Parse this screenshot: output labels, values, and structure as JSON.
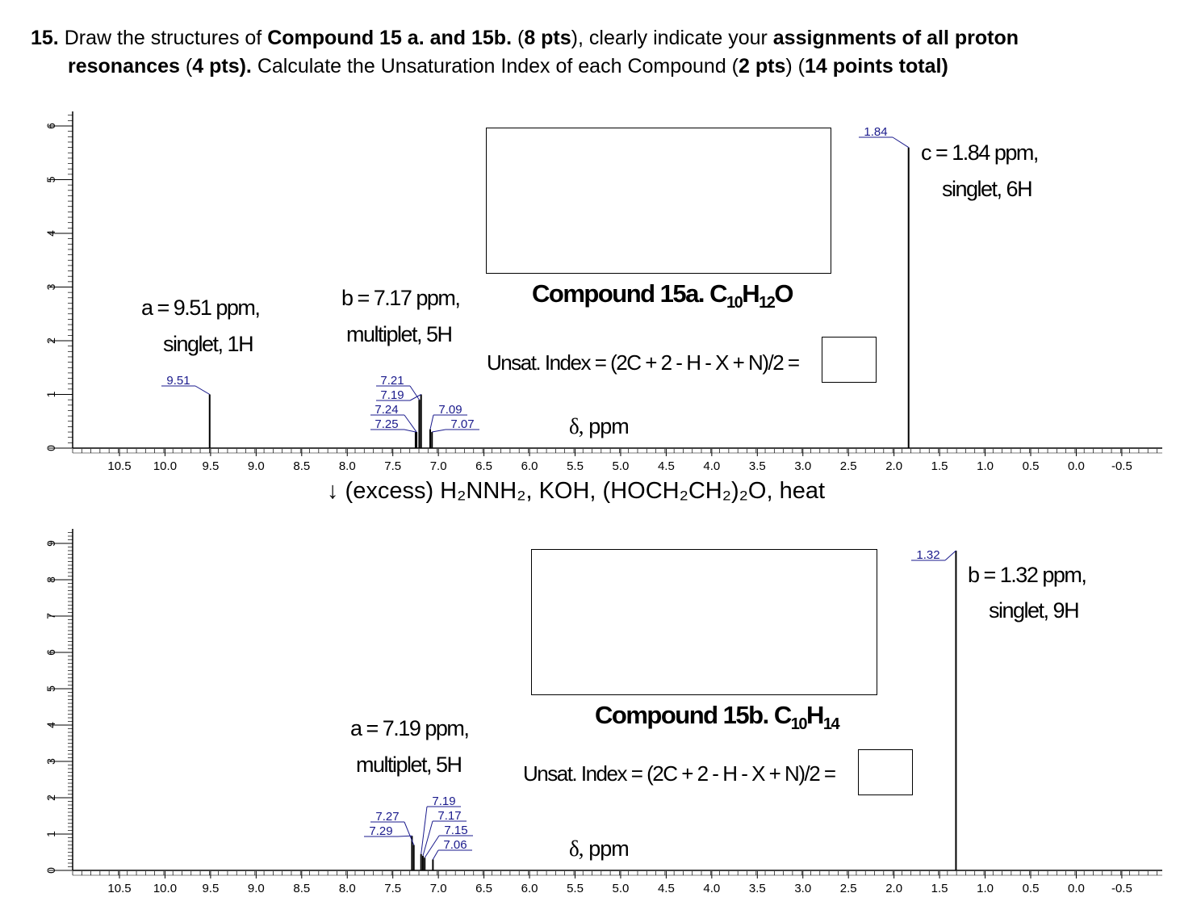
{
  "question": {
    "number": "15.",
    "segments": [
      {
        "t": " Draw the structures of ",
        "b": false
      },
      {
        "t": "Compound 15 a. and 15b.",
        "b": true
      },
      {
        "t": " (",
        "b": false
      },
      {
        "t": "8 pts",
        "b": true
      },
      {
        "t": "), clearly indicate your ",
        "b": false
      },
      {
        "t": "assignments of all proton",
        "b": true
      }
    ],
    "line2": [
      {
        "t": "resonances",
        "b": true
      },
      {
        "t": " (",
        "b": false
      },
      {
        "t": "4 pts).",
        "b": true
      },
      {
        "t": " Calculate the Unsaturation Index of each Compound (",
        "b": false
      },
      {
        "t": "2 pts",
        "b": true
      },
      {
        "t": ") (",
        "b": false
      },
      {
        "t": "14 points total)",
        "b": true
      }
    ]
  },
  "reagents": "↓ (excess) H₂NNH₂, KOH, (HOCH₂CH₂)₂O, heat",
  "unsat_formula": "Unsat. Index = (2C + 2 - H - X + N)/2 =",
  "x_axis_label_symbol": "δ,",
  "x_axis_label_unit": "ppm",
  "x_ticks": [
    "10.5",
    "10.0",
    "9.5",
    "9.0",
    "8.5",
    "8.0",
    "7.5",
    "7.0",
    "6.5",
    "6.0",
    "5.5",
    "5.0",
    "4.5",
    "4.0",
    "3.5",
    "3.0",
    "2.5",
    "2.0",
    "1.5",
    "1.0",
    "0.5",
    "0.0",
    "-0.5"
  ],
  "compound_a": {
    "name": "Compound 15a. ",
    "formula": [
      {
        "t": "C"
      },
      {
        "t": "10",
        "sub": true
      },
      {
        "t": "H"
      },
      {
        "t": "12",
        "sub": true
      },
      {
        "t": "O"
      }
    ],
    "assignments": [
      {
        "line1": "a = 9.51 ppm,",
        "line2": "singlet, 1H"
      },
      {
        "line1": "b = 7.17 ppm,",
        "line2": "multiplet, 5H"
      },
      {
        "line1": "c = 1.84 ppm,",
        "line2": "singlet, 6H"
      }
    ]
  },
  "compound_b": {
    "name": "Compound 15b. ",
    "formula": [
      {
        "t": "C"
      },
      {
        "t": "10",
        "sub": true
      },
      {
        "t": "H"
      },
      {
        "t": "14",
        "sub": true
      }
    ],
    "assignments": [
      {
        "line1": "a = 7.19 ppm,",
        "line2": "multiplet, 5H"
      },
      {
        "line1": "b = 1.32 ppm,",
        "line2": "singlet, 9H"
      }
    ]
  },
  "chart_data": [
    {
      "type": "line",
      "xlabel": "δ, ppm",
      "xlim": [
        10.5,
        -0.5
      ],
      "ylim": [
        0,
        6
      ],
      "y_ticks": [
        "0",
        "1",
        "2",
        "3",
        "4",
        "5",
        "6"
      ],
      "x_reversed": true,
      "peaks": [
        {
          "x": 9.51,
          "y": 1.0
        },
        {
          "x": 7.25,
          "y": 0.3
        },
        {
          "x": 7.24,
          "y": 0.3
        },
        {
          "x": 7.21,
          "y": 0.9
        },
        {
          "x": 7.19,
          "y": 1.0
        },
        {
          "x": 7.09,
          "y": 0.35
        },
        {
          "x": 7.07,
          "y": 0.3
        },
        {
          "x": 1.84,
          "y": 5.6
        }
      ],
      "peak_labels": [
        {
          "text": "9.51",
          "peak_x": 9.51
        },
        {
          "text": "7.21",
          "peak_x": 7.21
        },
        {
          "text": "7.19",
          "peak_x": 7.19
        },
        {
          "text": "7.24",
          "peak_x": 7.24
        },
        {
          "text": "7.25",
          "peak_x": 7.25
        },
        {
          "text": "7.09",
          "peak_x": 7.09
        },
        {
          "text": "7.07",
          "peak_x": 7.07
        },
        {
          "text": "1.84",
          "peak_x": 1.84
        }
      ]
    },
    {
      "type": "line",
      "xlabel": "δ, ppm",
      "xlim": [
        10.5,
        -0.5
      ],
      "ylim": [
        0,
        9
      ],
      "y_ticks": [
        "0",
        "1",
        "2",
        "3",
        "4",
        "5",
        "6",
        "7",
        "8",
        "9"
      ],
      "x_reversed": true,
      "peaks": [
        {
          "x": 7.29,
          "y": 0.95
        },
        {
          "x": 7.27,
          "y": 0.7
        },
        {
          "x": 7.19,
          "y": 0.45
        },
        {
          "x": 7.17,
          "y": 0.4
        },
        {
          "x": 7.15,
          "y": 0.35
        },
        {
          "x": 7.06,
          "y": 0.3
        },
        {
          "x": 1.32,
          "y": 8.8
        }
      ],
      "peak_labels": [
        {
          "text": "7.27",
          "peak_x": 7.27
        },
        {
          "text": "7.29",
          "peak_x": 7.29
        },
        {
          "text": "7.19",
          "peak_x": 7.19
        },
        {
          "text": "7.17",
          "peak_x": 7.17
        },
        {
          "text": "7.15",
          "peak_x": 7.15
        },
        {
          "text": "7.06",
          "peak_x": 7.06
        },
        {
          "text": "1.32",
          "peak_x": 1.32
        }
      ]
    }
  ]
}
